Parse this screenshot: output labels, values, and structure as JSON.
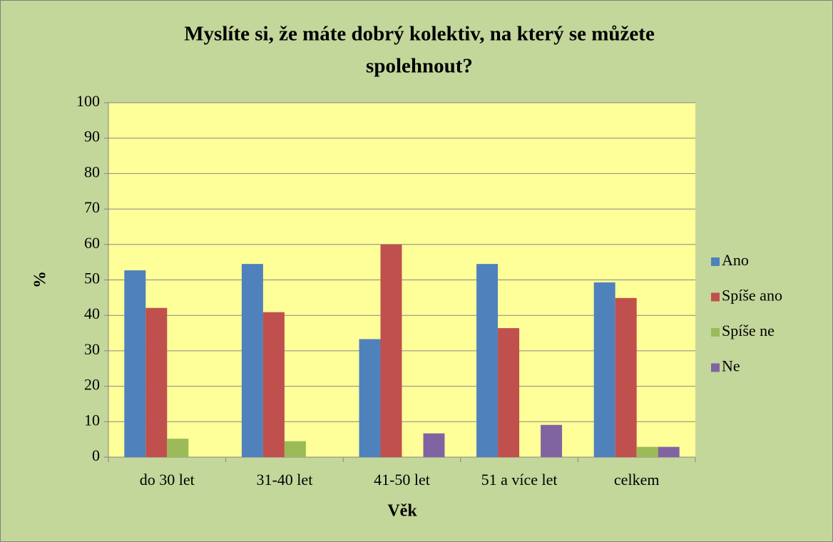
{
  "chart_data": {
    "type": "bar",
    "title": [
      "Myslíte si, že máte dobrý kolektiv, na který se můžete",
      "spolehnout?"
    ],
    "x_label": "Věk",
    "y_label": "%",
    "categories": [
      "do 30 let",
      "31-40 let",
      "41-50 let",
      "51 a více let",
      "celkem"
    ],
    "series": [
      {
        "name": "Ano",
        "color": "#4f81bd",
        "values": [
          52.7,
          54.5,
          33.3,
          54.5,
          49.3
        ]
      },
      {
        "name": "Spíše ano",
        "color": "#c0504d",
        "values": [
          42.1,
          40.9,
          60.0,
          36.4,
          44.9
        ]
      },
      {
        "name": "Spíše ne",
        "color": "#9bbb59",
        "values": [
          5.2,
          4.5,
          0,
          0,
          2.9
        ]
      },
      {
        "name": "Ne",
        "color": "#8064a2",
        "values": [
          0,
          0,
          6.7,
          9.1,
          2.9
        ]
      }
    ],
    "ylim": [
      0,
      100
    ],
    "yticks": [
      0,
      10,
      20,
      30,
      40,
      50,
      60,
      70,
      80,
      90,
      100
    ],
    "grid": true,
    "legend": "right"
  }
}
